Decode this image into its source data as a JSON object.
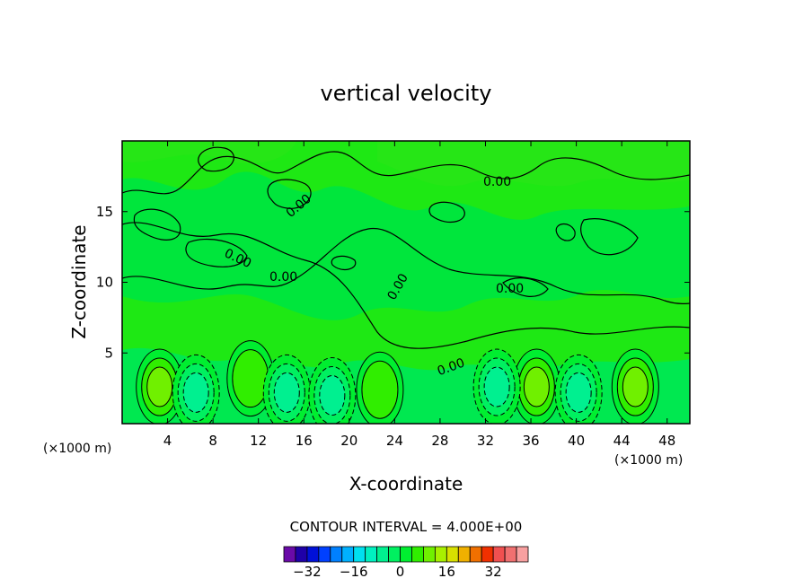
{
  "chart_data": {
    "type": "heatmap",
    "title": "vertical velocity",
    "xlabel": "X-coordinate",
    "ylabel": "Z-coordinate",
    "x_unit_label": "(×1000 m)",
    "x_ticks": [
      4,
      8,
      12,
      16,
      20,
      24,
      28,
      32,
      36,
      40,
      44,
      48
    ],
    "y_ticks": [
      5,
      10,
      15
    ],
    "xlim": [
      0,
      50
    ],
    "ylim": [
      0,
      20
    ],
    "contour_interval_text": "CONTOUR INTERVAL = 4.000E+00",
    "contour_labels": [
      "0.00",
      "0.00",
      "0.00",
      "0.00",
      "0.00",
      "0.00",
      "0.00"
    ],
    "colorbar": {
      "colors": [
        "#6a0aa8",
        "#1f00a8",
        "#0010d8",
        "#0040ff",
        "#0080ff",
        "#00b0ff",
        "#00e0f0",
        "#00f0c0",
        "#00f090",
        "#00f060",
        "#00ee30",
        "#30ee00",
        "#70f000",
        "#a8f000",
        "#d8e000",
        "#f0b000",
        "#f07000",
        "#f03000",
        "#f05050",
        "#f07070",
        "#f8a0a0"
      ],
      "tick_labels": [
        "-32",
        "-16",
        "0",
        "16",
        "32"
      ],
      "tick_values": [
        -32,
        -16,
        0,
        16,
        32
      ]
    },
    "cells": [
      {
        "x": 3.3,
        "z": 2.6,
        "level": 12
      },
      {
        "x": 11.3,
        "z": 3.2,
        "level": 11
      },
      {
        "x": 22.7,
        "z": 2.4,
        "level": 11
      },
      {
        "x": 36.5,
        "z": 2.6,
        "level": 12
      },
      {
        "x": 45.2,
        "z": 2.6,
        "level": 12
      },
      {
        "x": 6.5,
        "z": 2.2,
        "level": 8
      },
      {
        "x": 14.5,
        "z": 2.2,
        "level": 8
      },
      {
        "x": 33.0,
        "z": 2.6,
        "level": 8
      },
      {
        "x": 40.2,
        "z": 2.2,
        "level": 8
      },
      {
        "x": 18.5,
        "z": 2.0,
        "level": 8
      }
    ]
  }
}
